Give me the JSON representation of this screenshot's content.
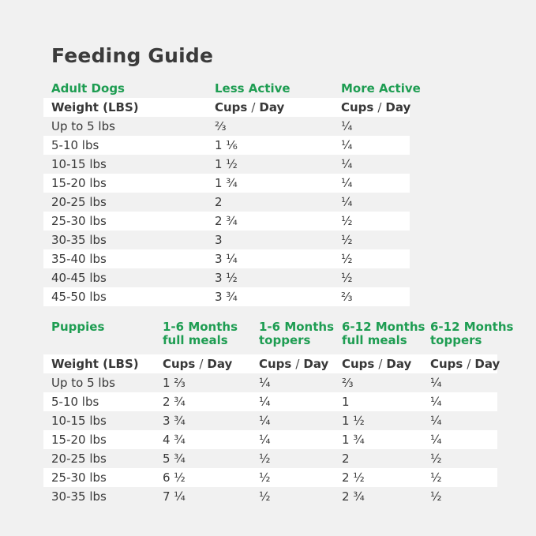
{
  "page": {
    "title": "Feeding Guide",
    "colors": {
      "background": "#F1F1F1",
      "row_white": "#FFFFFF",
      "accent_green": "#1E9D52",
      "text_dark": "#3B3B3B"
    }
  },
  "labels": {
    "cups": "Cups",
    "slash": "/",
    "day": "Day"
  },
  "adult": {
    "section_label": "Adult Dogs",
    "col_less_active": "Less Active",
    "col_more_active": "More Active",
    "weight_header": "Weight (LBS)",
    "rows": [
      {
        "weight": "Up to 5 lbs",
        "less": "⅔",
        "more": "¼"
      },
      {
        "weight": "5-10 lbs",
        "less": "1 ⅙",
        "more": "¼"
      },
      {
        "weight": "10-15 lbs",
        "less": "1 ½",
        "more": "¼"
      },
      {
        "weight": "15-20 lbs",
        "less": "1 ¾",
        "more": "¼"
      },
      {
        "weight": "20-25 lbs",
        "less": "2",
        "more": "¼"
      },
      {
        "weight": "25-30 lbs",
        "less": "2 ¾",
        "more": "½"
      },
      {
        "weight": "30-35 lbs",
        "less": "3",
        "more": "½"
      },
      {
        "weight": "35-40 lbs",
        "less": "3 ¼",
        "more": "½"
      },
      {
        "weight": "40-45 lbs",
        "less": "3 ½",
        "more": "½"
      },
      {
        "weight": "45-50 lbs",
        "less": "3 ¾",
        "more": "⅔"
      }
    ]
  },
  "puppies": {
    "section_label": "Puppies",
    "col_headers": [
      {
        "line1": "1-6 Months",
        "line2": "full meals"
      },
      {
        "line1": "1-6 Months",
        "line2": "toppers"
      },
      {
        "line1": "6-12 Months",
        "line2": "full meals"
      },
      {
        "line1": "6-12 Months",
        "line2": "toppers"
      }
    ],
    "weight_header": "Weight (LBS)",
    "rows": [
      {
        "weight": "Up to 5 lbs",
        "m16_full": "1 ⅔",
        "m16_top": "¼",
        "m612_full": "⅔",
        "m612_top": "¼"
      },
      {
        "weight": "5-10 lbs",
        "m16_full": "2 ¾",
        "m16_top": "¼",
        "m612_full": "1",
        "m612_top": "¼"
      },
      {
        "weight": "10-15 lbs",
        "m16_full": "3 ¾",
        "m16_top": "¼",
        "m612_full": "1 ½",
        "m612_top": "¼"
      },
      {
        "weight": "15-20 lbs",
        "m16_full": "4 ¾",
        "m16_top": "¼",
        "m612_full": "1 ¾",
        "m612_top": "¼"
      },
      {
        "weight": "20-25 lbs",
        "m16_full": "5 ¾",
        "m16_top": "½",
        "m612_full": "2",
        "m612_top": "½"
      },
      {
        "weight": "25-30 lbs",
        "m16_full": "6 ½",
        "m16_top": "½",
        "m612_full": "2 ½",
        "m612_top": "½"
      },
      {
        "weight": "30-35 lbs",
        "m16_full": "7 ¼",
        "m16_top": "½",
        "m612_full": "2 ¾",
        "m612_top": "½"
      }
    ]
  }
}
